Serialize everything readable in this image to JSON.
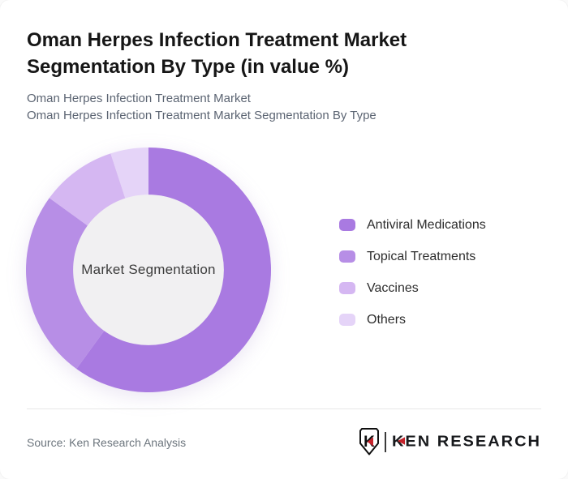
{
  "header": {
    "title": "Oman Herpes Infection Treatment Market Segmentation By Type (in value %)",
    "subtitle_line1": "Oman Herpes Infection Treatment Market",
    "subtitle_line2": "Oman Herpes Infection Treatment Market Segmentation By Type"
  },
  "chart_data": {
    "type": "pie",
    "variant": "donut",
    "title": "Oman Herpes Infection Treatment Market Segmentation By Type (in value %)",
    "center_label": "Market Segmentation",
    "categories": [
      "Antiviral Medications",
      "Topical Treatments",
      "Vaccines",
      "Others"
    ],
    "values": [
      60,
      25,
      10,
      5
    ],
    "unit": "%",
    "colors": [
      "#a97ae1",
      "#b78ee6",
      "#d5b7f2",
      "#e5d4f8"
    ],
    "start_angle_deg": 0,
    "direction": "clockwise",
    "legend_position": "right",
    "hole_color": "#f1f0f2",
    "hole_ratio": 0.615
  },
  "legend": {
    "items": [
      {
        "label": "Antiviral Medications",
        "color": "#a97ae1"
      },
      {
        "label": "Topical Treatments",
        "color": "#b78ee6"
      },
      {
        "label": "Vaccines",
        "color": "#d5b7f2"
      },
      {
        "label": "Others",
        "color": "#e5d4f8"
      }
    ]
  },
  "footer": {
    "source": "Source: Ken Research Analysis",
    "logo_mark_letter": "K",
    "logo_k": "K",
    "logo_rest": "EN RESEARCH",
    "logo_red": "#c5232b",
    "logo_black": "#17191c"
  }
}
